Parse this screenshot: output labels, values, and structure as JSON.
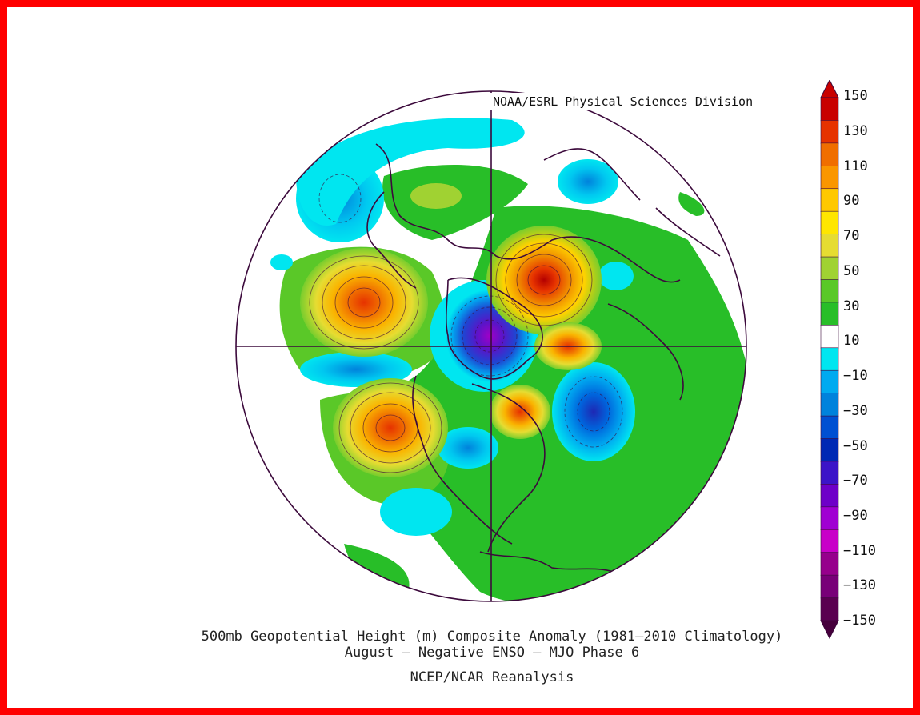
{
  "credit": "NOAA/ESRL Physical Sciences Division",
  "caption": {
    "line1": "500mb Geopotential Height (m) Composite Anomaly (1981-2010 Climatology)",
    "line2": "August - Negative ENSO - MJO Phase 6",
    "line3": "NCEP/NCAR Reanalysis"
  },
  "colorbar": {
    "labels": [
      "150",
      "130",
      "110",
      "90",
      "70",
      "50",
      "30",
      "10",
      "-10",
      "-30",
      "-50",
      "-70",
      "-90",
      "-110",
      "-130",
      "-150"
    ],
    "colors": [
      "#c80000",
      "#e63200",
      "#f06e00",
      "#fa9600",
      "#ffc800",
      "#ffe600",
      "#e6dc32",
      "#a0d232",
      "#5ac828",
      "#28be28",
      "#ffffff",
      "#00e6f0",
      "#00aaf0",
      "#0082dc",
      "#0050d2",
      "#0028b4",
      "#3c14c8",
      "#6e00c8",
      "#a000d2",
      "#c800c8",
      "#96008c",
      "#780078",
      "#5a0050"
    ],
    "top_arrow_color": "#c80000",
    "bottom_arrow_color": "#46003c"
  },
  "colors": {
    "frame": "#ff0000",
    "outline": "#3c0a3c"
  }
}
